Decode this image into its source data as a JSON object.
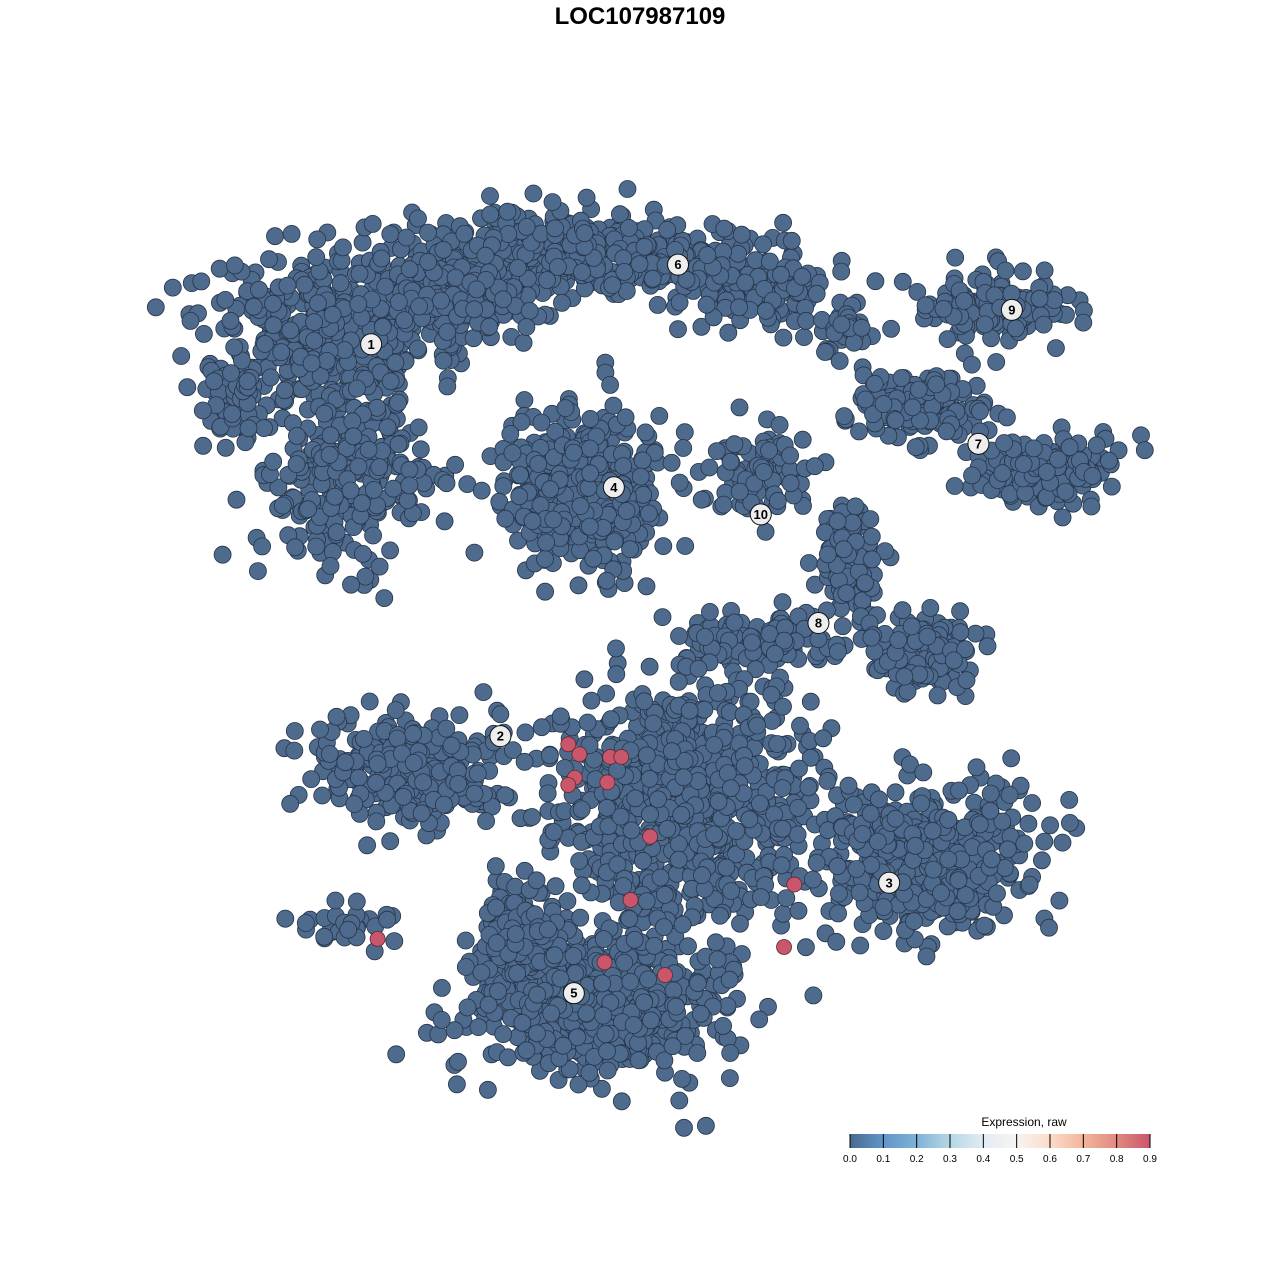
{
  "chart_data": {
    "type": "scatter",
    "title": "LOC107987109",
    "xlabel": "",
    "ylabel": "",
    "axes_visible": false,
    "grid": false,
    "xlim": [
      -50,
      50
    ],
    "ylim": [
      -50,
      50
    ],
    "point_color_default": "#4e6a8d",
    "point_color_expressed": "#c9566a",
    "clusters": [
      {
        "label": "1",
        "x": -31.6,
        "y": 32.4
      },
      {
        "label": "2",
        "x": -17.7,
        "y": -10.9
      },
      {
        "label": "3",
        "x": 24.1,
        "y": -27.1
      },
      {
        "label": "4",
        "x": -5.5,
        "y": 16.6
      },
      {
        "label": "5",
        "x": -9.8,
        "y": -39.3
      },
      {
        "label": "6",
        "x": 1.4,
        "y": 41.2
      },
      {
        "label": "7",
        "x": 33.7,
        "y": 21.4
      },
      {
        "label": "8",
        "x": 16.5,
        "y": 1.6
      },
      {
        "label": "9",
        "x": 37.3,
        "y": 36.2
      },
      {
        "label": "10",
        "x": 10.3,
        "y": 13.6
      }
    ],
    "expressed_cells": [
      {
        "x": -10.4,
        "y": -11.8,
        "value": 0.9
      },
      {
        "x": -9.2,
        "y": -12.9,
        "value": 0.9
      },
      {
        "x": -5.9,
        "y": -13.2,
        "value": 0.9
      },
      {
        "x": -4.7,
        "y": -13.2,
        "value": 0.9
      },
      {
        "x": -9.7,
        "y": -15.5,
        "value": 0.9
      },
      {
        "x": -10.4,
        "y": -16.3,
        "value": 0.9
      },
      {
        "x": -6.2,
        "y": -16.0,
        "value": 0.9
      },
      {
        "x": -1.6,
        "y": -22.0,
        "value": 0.9
      },
      {
        "x": -3.7,
        "y": -29.0,
        "value": 0.9
      },
      {
        "x": 13.9,
        "y": -27.3,
        "value": 0.9
      },
      {
        "x": 12.8,
        "y": -34.2,
        "value": 0.9
      },
      {
        "x": -6.5,
        "y": -35.9,
        "value": 0.9
      },
      {
        "x": 0.0,
        "y": -37.3,
        "value": 0.9
      },
      {
        "x": -30.9,
        "y": -33.3,
        "value": 0.9
      }
    ],
    "other_cells_value": 0.0,
    "legend": {
      "title": "Expression, raw",
      "placement": "bottom-right",
      "ticks": [
        "0.0",
        "0.1",
        "0.2",
        "0.3",
        "0.4",
        "0.5",
        "0.6",
        "0.7",
        "0.8",
        "0.9"
      ],
      "range": [
        0,
        0.9
      ],
      "colors": [
        "#4a6890",
        "#6096c8",
        "#7fb2d6",
        "#b6d7e6",
        "#e2ecf3",
        "#f7f4f2",
        "#fbdccb",
        "#f3b49b",
        "#e18a80",
        "#c9566a"
      ]
    }
  }
}
